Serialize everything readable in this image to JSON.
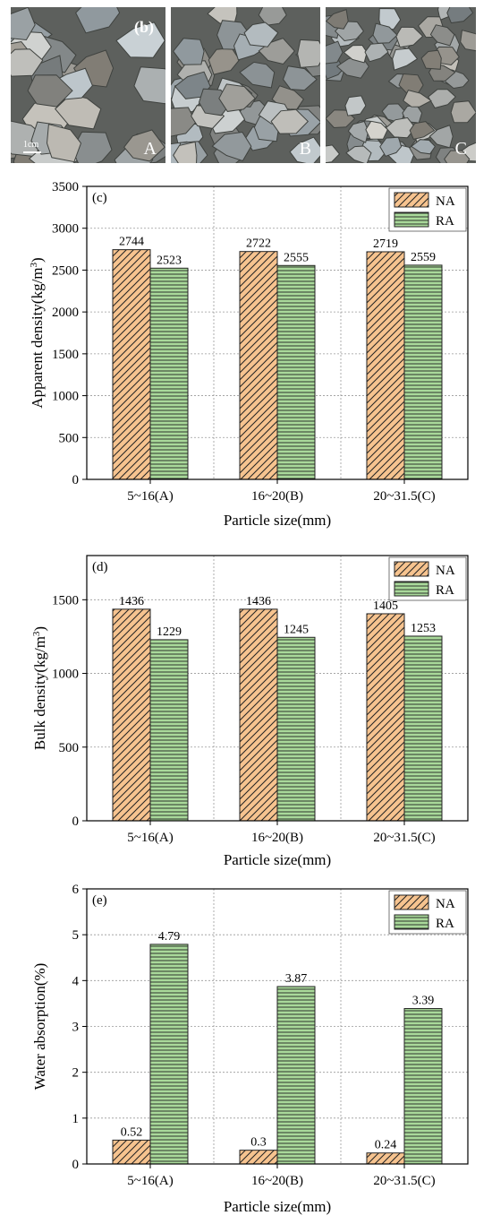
{
  "photos": {
    "panel_tag": "(b)",
    "scale_label": "1cm",
    "items": [
      {
        "label": "A"
      },
      {
        "label": "B"
      },
      {
        "label": "C"
      }
    ]
  },
  "colors": {
    "NA": "#f6c38f",
    "RA": "#a9d99a"
  },
  "chart_data": [
    {
      "type": "bar",
      "panel": "(c)",
      "categories": [
        "5~16(A)",
        "16~20(B)",
        "20~31.5(C)"
      ],
      "series": [
        {
          "name": "NA",
          "values": [
            2744,
            2722,
            2719
          ]
        },
        {
          "name": "RA",
          "values": [
            2523,
            2555,
            2559
          ]
        }
      ],
      "xlabel": "Particle size(mm)",
      "ylabel": "Apparent density(kg/m3)",
      "ylim": [
        0,
        3500
      ],
      "yticks": [
        "0",
        "500",
        "1000",
        "1500",
        "2000",
        "2500",
        "3000",
        "3500"
      ],
      "value_labels": [
        [
          "2744",
          "2722",
          "2719"
        ],
        [
          "2523",
          "2555",
          "2559"
        ]
      ],
      "legend": "top-right",
      "grid": true
    },
    {
      "type": "bar",
      "panel": "(d)",
      "categories": [
        "5~16(A)",
        "16~20(B)",
        "20~31.5(C)"
      ],
      "series": [
        {
          "name": "NA",
          "values": [
            1436,
            1436,
            1405
          ]
        },
        {
          "name": "RA",
          "values": [
            1229,
            1245,
            1253
          ]
        }
      ],
      "xlabel": "Particle size(mm)",
      "ylabel": "Bulk density(kg/m3)",
      "ylim": [
        0,
        1800
      ],
      "yticks": [
        "0",
        "500",
        "1000",
        "1500"
      ],
      "value_labels": [
        [
          "1436",
          "1436",
          "1405"
        ],
        [
          "1229",
          "1245",
          "1253"
        ]
      ],
      "legend": "top-right",
      "grid": true
    },
    {
      "type": "bar",
      "panel": "(e)",
      "categories": [
        "5~16(A)",
        "16~20(B)",
        "20~31.5(C)"
      ],
      "series": [
        {
          "name": "NA",
          "values": [
            0.52,
            0.3,
            0.24
          ]
        },
        {
          "name": "RA",
          "values": [
            4.79,
            3.87,
            3.39
          ]
        }
      ],
      "xlabel": "Particle size(mm)",
      "ylabel": "Water absorption(%)",
      "ylim": [
        0,
        6
      ],
      "yticks": [
        "0",
        "1",
        "2",
        "3",
        "4",
        "5",
        "6"
      ],
      "value_labels": [
        [
          "0.52",
          "0.3",
          "0.24"
        ],
        [
          "4.79",
          "3.87",
          "3.39"
        ]
      ],
      "legend": "top-right",
      "grid": true
    }
  ]
}
